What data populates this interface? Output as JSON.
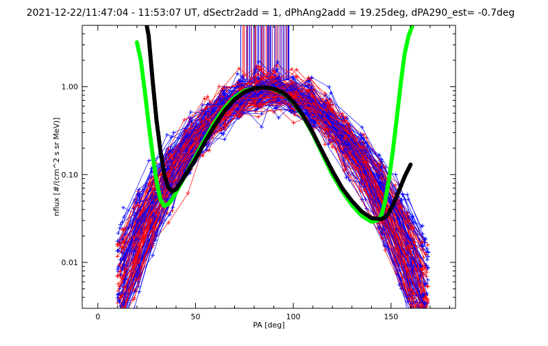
{
  "chart_data": {
    "type": "line",
    "title": "2021-12-22/11:47:04 - 11:53:07 UT, dSectr2add = 1, dPhAng2add = 19.25deg, dPA290_est=  -0.7deg",
    "xlabel": "PA [deg]",
    "ylabel": "nflux [#/(cm^2 s sr MeV)]",
    "xlim": [
      -8,
      183
    ],
    "ylim": [
      0.003,
      5
    ],
    "yscale": "log",
    "xticks": [
      0,
      50,
      100,
      150
    ],
    "xtick_labels": [
      "0",
      "50",
      "100",
      "150"
    ],
    "yticks": [
      0.01,
      0.1,
      1.0
    ],
    "ytick_labels": [
      "0.01",
      "0.10",
      "1.00"
    ],
    "colors": {
      "red_series": "#ff0000",
      "blue_series": "#0000ff",
      "black_fit": "#000000",
      "green_fit": "#00ff00"
    },
    "series": [
      {
        "color": "#00ff00",
        "style": "thick-dashed",
        "x": [
          20,
          22,
          24,
          26,
          28,
          30,
          32,
          34,
          36,
          38,
          40,
          45,
          50,
          55,
          60,
          65,
          70,
          75,
          80,
          85,
          90,
          95,
          100,
          105,
          110,
          115,
          120,
          125,
          130,
          135,
          140,
          143,
          145,
          147,
          149,
          151,
          153,
          155,
          157,
          159,
          161
        ],
        "values": [
          3.2,
          2.0,
          0.9,
          0.38,
          0.17,
          0.085,
          0.052,
          0.044,
          0.046,
          0.052,
          0.063,
          0.1,
          0.16,
          0.26,
          0.4,
          0.58,
          0.76,
          0.9,
          0.96,
          0.98,
          0.94,
          0.84,
          0.66,
          0.46,
          0.29,
          0.17,
          0.1,
          0.065,
          0.045,
          0.034,
          0.029,
          0.03,
          0.034,
          0.05,
          0.09,
          0.19,
          0.45,
          1.1,
          2.4,
          3.8,
          5.0
        ]
      },
      {
        "color": "#000000",
        "style": "thick-dashed",
        "x": [
          25,
          26,
          28,
          30,
          32,
          34,
          36,
          38,
          40,
          45,
          50,
          55,
          60,
          65,
          70,
          75,
          80,
          85,
          90,
          95,
          100,
          105,
          110,
          115,
          120,
          125,
          130,
          135,
          140,
          145,
          148,
          151,
          154,
          157,
          160
        ],
        "values": [
          5.0,
          3.8,
          1.2,
          0.42,
          0.19,
          0.1,
          0.072,
          0.064,
          0.068,
          0.1,
          0.15,
          0.24,
          0.37,
          0.54,
          0.72,
          0.87,
          0.96,
          0.98,
          0.95,
          0.85,
          0.67,
          0.47,
          0.3,
          0.18,
          0.11,
          0.07,
          0.05,
          0.038,
          0.032,
          0.031,
          0.034,
          0.045,
          0.065,
          0.095,
          0.13
        ]
      }
    ]
  }
}
